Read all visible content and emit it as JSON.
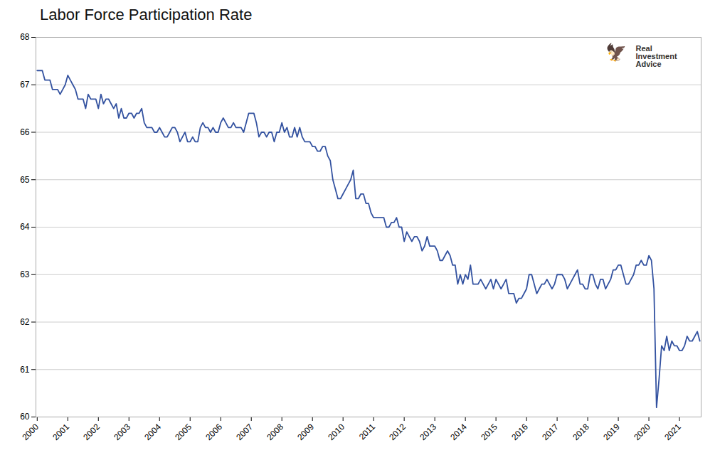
{
  "chart_data": {
    "type": "line",
    "title": "Labor Force Participation Rate",
    "color": "#3352a0",
    "grid": true,
    "ylim": [
      60,
      68
    ],
    "yticks": [
      60,
      61,
      62,
      63,
      64,
      65,
      66,
      67,
      68
    ],
    "annotations": [
      "🦅",
      "Real\nInvestment\nAdvice"
    ],
    "categories": [
      "2000",
      null,
      null,
      null,
      null,
      null,
      null,
      null,
      null,
      null,
      null,
      null,
      "2001",
      null,
      null,
      null,
      null,
      null,
      null,
      null,
      null,
      null,
      null,
      null,
      "2002",
      null,
      null,
      null,
      null,
      null,
      null,
      null,
      null,
      null,
      null,
      null,
      "2003",
      null,
      null,
      null,
      null,
      null,
      null,
      null,
      null,
      null,
      null,
      null,
      "2004",
      null,
      null,
      null,
      null,
      null,
      null,
      null,
      null,
      null,
      null,
      null,
      "2005",
      null,
      null,
      null,
      null,
      null,
      null,
      null,
      null,
      null,
      null,
      null,
      "2006",
      null,
      null,
      null,
      null,
      null,
      null,
      null,
      null,
      null,
      null,
      null,
      "2007",
      null,
      null,
      null,
      null,
      null,
      null,
      null,
      null,
      null,
      null,
      null,
      "2008",
      null,
      null,
      null,
      null,
      null,
      null,
      null,
      null,
      null,
      null,
      null,
      "2009",
      null,
      null,
      null,
      null,
      null,
      null,
      null,
      null,
      null,
      null,
      null,
      "2010",
      null,
      null,
      null,
      null,
      null,
      null,
      null,
      null,
      null,
      null,
      null,
      "2011",
      null,
      null,
      null,
      null,
      null,
      null,
      null,
      null,
      null,
      null,
      null,
      "2012",
      null,
      null,
      null,
      null,
      null,
      null,
      null,
      null,
      null,
      null,
      null,
      "2013",
      null,
      null,
      null,
      null,
      null,
      null,
      null,
      null,
      null,
      null,
      null,
      "2014",
      null,
      null,
      null,
      null,
      null,
      null,
      null,
      null,
      null,
      null,
      null,
      "2015",
      null,
      null,
      null,
      null,
      null,
      null,
      null,
      null,
      null,
      null,
      null,
      "2016",
      null,
      null,
      null,
      null,
      null,
      null,
      null,
      null,
      null,
      null,
      null,
      "2017",
      null,
      null,
      null,
      null,
      null,
      null,
      null,
      null,
      null,
      null,
      null,
      "2018",
      null,
      null,
      null,
      null,
      null,
      null,
      null,
      null,
      null,
      null,
      null,
      "2019",
      null,
      null,
      null,
      null,
      null,
      null,
      null,
      null,
      null,
      null,
      null,
      "2020",
      null,
      null,
      null,
      null,
      null,
      null,
      null,
      null,
      null,
      null,
      null,
      "2021",
      null,
      null,
      null,
      null,
      null,
      null,
      null,
      null
    ],
    "values": [
      67.3,
      67.3,
      67.3,
      67.1,
      67.1,
      67.1,
      66.9,
      66.9,
      66.9,
      66.8,
      66.9,
      67.0,
      67.2,
      67.1,
      67.0,
      66.9,
      66.7,
      66.7,
      66.7,
      66.5,
      66.8,
      66.7,
      66.7,
      66.7,
      66.5,
      66.8,
      66.6,
      66.7,
      66.7,
      66.6,
      66.5,
      66.6,
      66.3,
      66.5,
      66.3,
      66.3,
      66.4,
      66.4,
      66.3,
      66.4,
      66.4,
      66.5,
      66.2,
      66.1,
      66.1,
      66.1,
      66.0,
      66.0,
      66.1,
      66.0,
      65.9,
      65.9,
      66.0,
      66.1,
      66.1,
      66.0,
      65.8,
      65.9,
      66.0,
      65.8,
      65.8,
      65.9,
      65.8,
      65.8,
      66.1,
      66.2,
      66.1,
      66.1,
      66.0,
      66.1,
      66.0,
      66.0,
      66.2,
      66.3,
      66.2,
      66.1,
      66.1,
      66.2,
      66.1,
      66.1,
      66.1,
      66.0,
      66.2,
      66.4,
      66.4,
      66.4,
      66.2,
      65.9,
      66.0,
      66.0,
      65.9,
      66.0,
      66.0,
      65.8,
      66.0,
      66.0,
      66.2,
      66.0,
      66.1,
      65.9,
      65.9,
      66.1,
      65.9,
      66.1,
      65.9,
      65.8,
      65.8,
      65.8,
      65.7,
      65.7,
      65.6,
      65.6,
      65.7,
      65.7,
      65.5,
      65.4,
      65.0,
      64.8,
      64.6,
      64.6,
      64.7,
      64.8,
      64.9,
      65.0,
      65.2,
      64.6,
      64.6,
      64.7,
      64.7,
      64.5,
      64.5,
      64.3,
      64.2,
      64.2,
      64.2,
      64.2,
      64.2,
      64.0,
      64.0,
      64.1,
      64.1,
      64.2,
      64.0,
      64.0,
      63.7,
      63.9,
      63.8,
      63.7,
      63.8,
      63.8,
      63.7,
      63.5,
      63.6,
      63.8,
      63.6,
      63.6,
      63.6,
      63.5,
      63.3,
      63.3,
      63.4,
      63.5,
      63.4,
      63.2,
      63.2,
      62.8,
      63.0,
      62.8,
      63.0,
      62.9,
      63.2,
      62.8,
      62.8,
      62.8,
      62.9,
      62.8,
      62.7,
      62.8,
      62.9,
      62.7,
      62.9,
      62.8,
      62.7,
      62.8,
      62.9,
      62.6,
      62.6,
      62.6,
      62.4,
      62.5,
      62.5,
      62.6,
      62.7,
      63.0,
      63.0,
      62.8,
      62.6,
      62.7,
      62.8,
      62.8,
      62.9,
      62.8,
      62.7,
      62.8,
      63.0,
      63.0,
      63.0,
      62.9,
      62.7,
      62.8,
      62.9,
      63.0,
      63.1,
      62.8,
      62.8,
      62.7,
      62.7,
      63.0,
      63.0,
      62.8,
      62.7,
      62.9,
      62.9,
      62.7,
      62.8,
      62.9,
      63.1,
      63.1,
      63.2,
      63.2,
      63.0,
      62.8,
      62.8,
      62.9,
      63.0,
      63.2,
      63.2,
      63.3,
      63.2,
      63.2,
      63.4,
      63.3,
      62.7,
      60.2,
      60.8,
      61.5,
      61.4,
      61.7,
      61.4,
      61.6,
      61.5,
      61.5,
      61.4,
      61.4,
      61.5,
      61.7,
      61.6,
      61.6,
      61.7,
      61.8,
      61.6
    ]
  }
}
